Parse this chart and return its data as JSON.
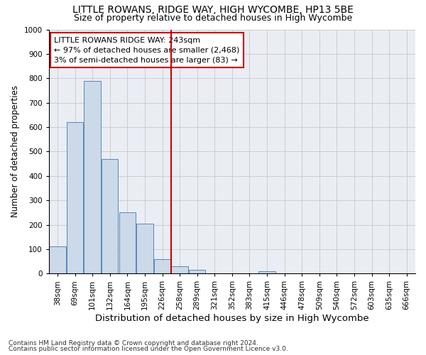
{
  "title": "LITTLE ROWANS, RIDGE WAY, HIGH WYCOMBE, HP13 5BE",
  "subtitle": "Size of property relative to detached houses in High Wycombe",
  "xlabel": "Distribution of detached houses by size in High Wycombe",
  "ylabel": "Number of detached properties",
  "footnote1": "Contains HM Land Registry data © Crown copyright and database right 2024.",
  "footnote2": "Contains public sector information licensed under the Open Government Licence v3.0.",
  "categories": [
    "38sqm",
    "69sqm",
    "101sqm",
    "132sqm",
    "164sqm",
    "195sqm",
    "226sqm",
    "258sqm",
    "289sqm",
    "321sqm",
    "352sqm",
    "383sqm",
    "415sqm",
    "446sqm",
    "478sqm",
    "509sqm",
    "540sqm",
    "572sqm",
    "603sqm",
    "635sqm",
    "666sqm"
  ],
  "values": [
    110,
    620,
    790,
    470,
    250,
    205,
    60,
    30,
    15,
    0,
    0,
    0,
    10,
    0,
    0,
    0,
    0,
    0,
    0,
    0,
    0
  ],
  "bar_color": "#ccd9e8",
  "bar_edge_color": "#5588bb",
  "bar_edge_width": 0.7,
  "vline_x_index": 7,
  "vline_color": "#cc0000",
  "annotation_line1": "LITTLE ROWANS RIDGE WAY: 243sqm",
  "annotation_line2": "← 97% of detached houses are smaller (2,468)",
  "annotation_line3": "3% of semi-detached houses are larger (83) →",
  "annotation_box_color": "#cc0000",
  "ylim": [
    0,
    1000
  ],
  "yticks": [
    0,
    100,
    200,
    300,
    400,
    500,
    600,
    700,
    800,
    900,
    1000
  ],
  "grid_color": "#cccccc",
  "bg_color": "#eaeef4",
  "title_fontsize": 10,
  "subtitle_fontsize": 9,
  "xlabel_fontsize": 9.5,
  "ylabel_fontsize": 8.5,
  "tick_fontsize": 7.5,
  "annotation_fontsize": 8,
  "footnote_fontsize": 6.5
}
